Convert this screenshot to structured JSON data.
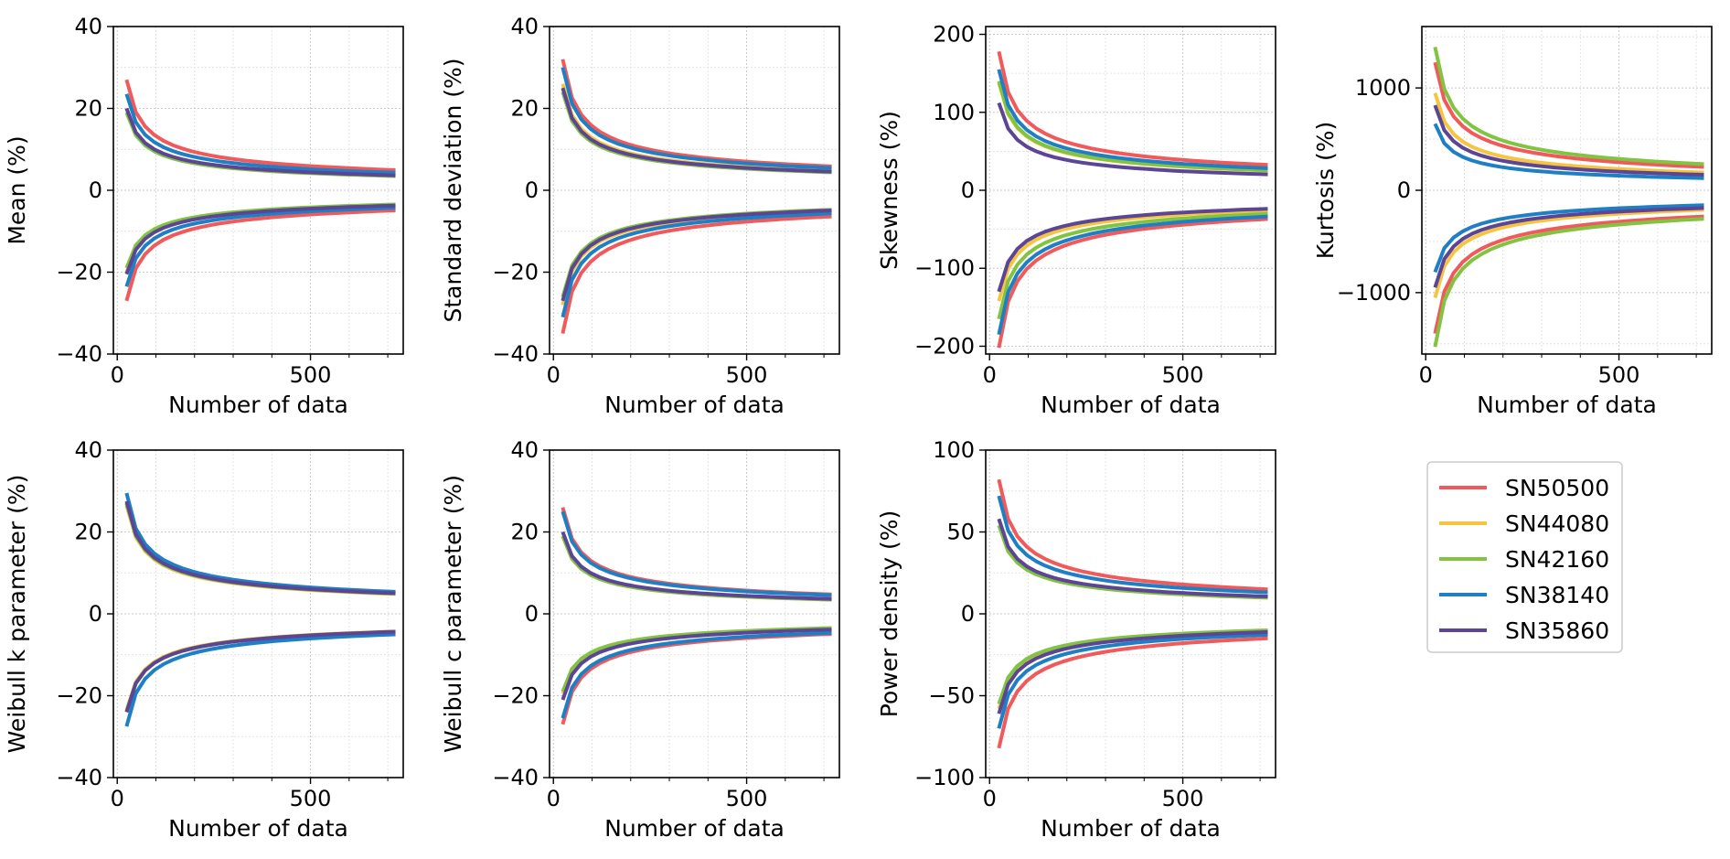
{
  "chart_data": [
    {
      "type": "line",
      "title": "",
      "xlabel": "Number of data",
      "ylabel": "Mean (%)",
      "xlim": [
        -10,
        740
      ],
      "ylim": [
        -40,
        40
      ],
      "xticks": [
        0,
        500
      ],
      "yticks": [
        -40,
        -20,
        0,
        20,
        40
      ],
      "grid": true,
      "series": [
        {
          "name": "SN50500",
          "color": "#f05a5a",
          "upper_amp": 27,
          "lower_amp": -27
        },
        {
          "name": "SN44080",
          "color": "#f5c542",
          "upper_amp": 20,
          "lower_amp": -20
        },
        {
          "name": "SN42160",
          "color": "#82c341",
          "upper_amp": 19,
          "lower_amp": -19
        },
        {
          "name": "SN38140",
          "color": "#1f7fc4",
          "upper_amp": 23.5,
          "lower_amp": -23.5
        },
        {
          "name": "SN35860",
          "color": "#5b4594",
          "upper_amp": 20,
          "lower_amp": -20.5
        }
      ]
    },
    {
      "type": "line",
      "title": "",
      "xlabel": "Number of data",
      "ylabel": "Standard deviation (%)",
      "xlim": [
        -10,
        740
      ],
      "ylim": [
        -40,
        40
      ],
      "xticks": [
        0,
        500
      ],
      "yticks": [
        -40,
        -20,
        0,
        20,
        40
      ],
      "grid": true,
      "series": [
        {
          "name": "SN50500",
          "color": "#f05a5a",
          "upper_amp": 32,
          "lower_amp": -35
        },
        {
          "name": "SN44080",
          "color": "#f5c542",
          "upper_amp": 26,
          "lower_amp": -28
        },
        {
          "name": "SN42160",
          "color": "#82c341",
          "upper_amp": 24,
          "lower_amp": -26
        },
        {
          "name": "SN38140",
          "color": "#1f7fc4",
          "upper_amp": 30,
          "lower_amp": -31
        },
        {
          "name": "SN35860",
          "color": "#5b4594",
          "upper_amp": 25,
          "lower_amp": -27
        }
      ]
    },
    {
      "type": "line",
      "title": "",
      "xlabel": "Number of data",
      "ylabel": "Skewness (%)",
      "xlim": [
        -10,
        740
      ],
      "ylim": [
        -210,
        210
      ],
      "xticks": [
        0,
        500
      ],
      "yticks": [
        -200,
        -100,
        0,
        100,
        200
      ],
      "grid": true,
      "series": [
        {
          "name": "SN50500",
          "color": "#f05a5a",
          "upper_amp": 178,
          "lower_amp": -202
        },
        {
          "name": "SN44080",
          "color": "#f5c542",
          "upper_amp": 138,
          "lower_amp": -142
        },
        {
          "name": "SN42160",
          "color": "#82c341",
          "upper_amp": 140,
          "lower_amp": -165
        },
        {
          "name": "SN38140",
          "color": "#1f7fc4",
          "upper_amp": 155,
          "lower_amp": -185
        },
        {
          "name": "SN35860",
          "color": "#5b4594",
          "upper_amp": 112,
          "lower_amp": -130
        }
      ]
    },
    {
      "type": "line",
      "title": "",
      "xlabel": "Number of data",
      "ylabel": "Kurtosis (%)",
      "xlim": [
        -10,
        740
      ],
      "ylim": [
        -1600,
        1600
      ],
      "xticks": [
        0,
        500
      ],
      "yticks": [
        -1000,
        0,
        1000
      ],
      "grid": true,
      "series": [
        {
          "name": "SN50500",
          "color": "#f05a5a",
          "upper_amp": 1250,
          "lower_amp": -1400
        },
        {
          "name": "SN44080",
          "color": "#f5c542",
          "upper_amp": 950,
          "lower_amp": -1050
        },
        {
          "name": "SN42160",
          "color": "#82c341",
          "upper_amp": 1400,
          "lower_amp": -1530
        },
        {
          "name": "SN38140",
          "color": "#1f7fc4",
          "upper_amp": 650,
          "lower_amp": -800
        },
        {
          "name": "SN35860",
          "color": "#5b4594",
          "upper_amp": 830,
          "lower_amp": -950
        }
      ]
    },
    {
      "type": "line",
      "title": "",
      "xlabel": "Number of data",
      "ylabel": "Weibull k parameter (%)",
      "xlim": [
        -10,
        740
      ],
      "ylim": [
        -40,
        40
      ],
      "xticks": [
        0,
        500
      ],
      "yticks": [
        -40,
        -20,
        0,
        20,
        40
      ],
      "grid": true,
      "series": [
        {
          "name": "SN50500",
          "color": "#f05a5a",
          "upper_amp": 27,
          "lower_amp": -24
        },
        {
          "name": "SN44080",
          "color": "#f5c542",
          "upper_amp": 26.5,
          "lower_amp": -23.5
        },
        {
          "name": "SN42160",
          "color": "#82c341",
          "upper_amp": 27,
          "lower_amp": -24
        },
        {
          "name": "SN38140",
          "color": "#1f7fc4",
          "upper_amp": 29.5,
          "lower_amp": -27.5
        },
        {
          "name": "SN35860",
          "color": "#5b4594",
          "upper_amp": 27.5,
          "lower_amp": -24
        }
      ]
    },
    {
      "type": "line",
      "title": "",
      "xlabel": "Number of data",
      "ylabel": "Weibull c parameter (%)",
      "xlim": [
        -10,
        740
      ],
      "ylim": [
        -40,
        40
      ],
      "xticks": [
        0,
        500
      ],
      "yticks": [
        -40,
        -20,
        0,
        20,
        40
      ],
      "grid": true,
      "series": [
        {
          "name": "SN50500",
          "color": "#f05a5a",
          "upper_amp": 26,
          "lower_amp": -27
        },
        {
          "name": "SN44080",
          "color": "#f5c542",
          "upper_amp": 19,
          "lower_amp": -19.5
        },
        {
          "name": "SN42160",
          "color": "#82c341",
          "upper_amp": 19,
          "lower_amp": -19
        },
        {
          "name": "SN38140",
          "color": "#1f7fc4",
          "upper_amp": 25,
          "lower_amp": -25.5
        },
        {
          "name": "SN35860",
          "color": "#5b4594",
          "upper_amp": 20,
          "lower_amp": -21
        }
      ]
    },
    {
      "type": "line",
      "title": "",
      "xlabel": "Number of data",
      "ylabel": "Power density (%)",
      "xlim": [
        -10,
        740
      ],
      "ylim": [
        -100,
        100
      ],
      "xticks": [
        0,
        500
      ],
      "yticks": [
        -100,
        -50,
        0,
        50,
        100
      ],
      "grid": true,
      "series": [
        {
          "name": "SN50500",
          "color": "#f05a5a",
          "upper_amp": 82,
          "lower_amp": -82
        },
        {
          "name": "SN44080",
          "color": "#f5c542",
          "upper_amp": 58,
          "lower_amp": -58
        },
        {
          "name": "SN42160",
          "color": "#82c341",
          "upper_amp": 54,
          "lower_amp": -55
        },
        {
          "name": "SN38140",
          "color": "#1f7fc4",
          "upper_amp": 72,
          "lower_amp": -70
        },
        {
          "name": "SN35860",
          "color": "#5b4594",
          "upper_amp": 58,
          "lower_amp": -61
        }
      ]
    }
  ],
  "curve_model": {
    "x_start": 24,
    "x_end": 720,
    "x_step": 24,
    "note": "each bound follows amp * sqrt(x_start / x)"
  },
  "legend": {
    "placement": "right-of-bottom-row",
    "entries": [
      {
        "label": "SN50500",
        "color": "#f05a5a"
      },
      {
        "label": "SN44080",
        "color": "#f5c542"
      },
      {
        "label": "SN42160",
        "color": "#82c341"
      },
      {
        "label": "SN38140",
        "color": "#1f7fc4"
      },
      {
        "label": "SN35860",
        "color": "#5b4594"
      }
    ]
  }
}
